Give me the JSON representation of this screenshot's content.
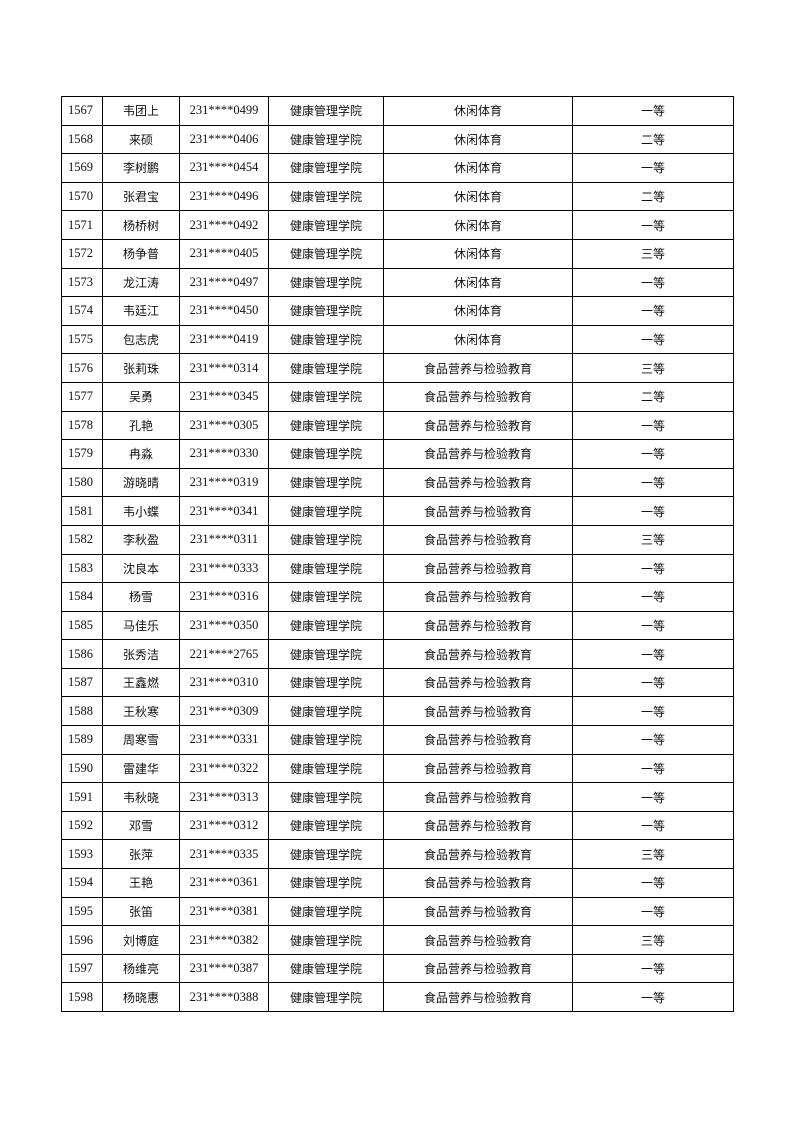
{
  "rows": [
    [
      "1567",
      "韦团上",
      "231****0499",
      "健康管理学院",
      "休闲体育",
      "一等"
    ],
    [
      "1568",
      "来硕",
      "231****0406",
      "健康管理学院",
      "休闲体育",
      "二等"
    ],
    [
      "1569",
      "李树鹏",
      "231****0454",
      "健康管理学院",
      "休闲体育",
      "一等"
    ],
    [
      "1570",
      "张君宝",
      "231****0496",
      "健康管理学院",
      "休闲体育",
      "二等"
    ],
    [
      "1571",
      "杨桥树",
      "231****0492",
      "健康管理学院",
      "休闲体育",
      "一等"
    ],
    [
      "1572",
      "杨争普",
      "231****0405",
      "健康管理学院",
      "休闲体育",
      "三等"
    ],
    [
      "1573",
      "龙江涛",
      "231****0497",
      "健康管理学院",
      "休闲体育",
      "一等"
    ],
    [
      "1574",
      "韦廷江",
      "231****0450",
      "健康管理学院",
      "休闲体育",
      "一等"
    ],
    [
      "1575",
      "包志虎",
      "231****0419",
      "健康管理学院",
      "休闲体育",
      "一等"
    ],
    [
      "1576",
      "张莉珠",
      "231****0314",
      "健康管理学院",
      "食品营养与检验教育",
      "三等"
    ],
    [
      "1577",
      "吴勇",
      "231****0345",
      "健康管理学院",
      "食品营养与检验教育",
      "二等"
    ],
    [
      "1578",
      "孔艳",
      "231****0305",
      "健康管理学院",
      "食品营养与检验教育",
      "一等"
    ],
    [
      "1579",
      "冉淼",
      "231****0330",
      "健康管理学院",
      "食品营养与检验教育",
      "一等"
    ],
    [
      "1580",
      "游晓晴",
      "231****0319",
      "健康管理学院",
      "食品营养与检验教育",
      "一等"
    ],
    [
      "1581",
      "韦小蝶",
      "231****0341",
      "健康管理学院",
      "食品营养与检验教育",
      "一等"
    ],
    [
      "1582",
      "李秋盈",
      "231****0311",
      "健康管理学院",
      "食品营养与检验教育",
      "三等"
    ],
    [
      "1583",
      "沈良本",
      "231****0333",
      "健康管理学院",
      "食品营养与检验教育",
      "一等"
    ],
    [
      "1584",
      "杨雪",
      "231****0316",
      "健康管理学院",
      "食品营养与检验教育",
      "一等"
    ],
    [
      "1585",
      "马佳乐",
      "231****0350",
      "健康管理学院",
      "食品营养与检验教育",
      "一等"
    ],
    [
      "1586",
      "张秀洁",
      "221****2765",
      "健康管理学院",
      "食品营养与检验教育",
      "一等"
    ],
    [
      "1587",
      "王鑫燃",
      "231****0310",
      "健康管理学院",
      "食品营养与检验教育",
      "一等"
    ],
    [
      "1588",
      "王秋寒",
      "231****0309",
      "健康管理学院",
      "食品营养与检验教育",
      "一等"
    ],
    [
      "1589",
      "周寒雪",
      "231****0331",
      "健康管理学院",
      "食品营养与检验教育",
      "一等"
    ],
    [
      "1590",
      "雷建华",
      "231****0322",
      "健康管理学院",
      "食品营养与检验教育",
      "一等"
    ],
    [
      "1591",
      "韦秋晓",
      "231****0313",
      "健康管理学院",
      "食品营养与检验教育",
      "一等"
    ],
    [
      "1592",
      "邓雪",
      "231****0312",
      "健康管理学院",
      "食品营养与检验教育",
      "一等"
    ],
    [
      "1593",
      "张萍",
      "231****0335",
      "健康管理学院",
      "食品营养与检验教育",
      "三等"
    ],
    [
      "1594",
      "王艳",
      "231****0361",
      "健康管理学院",
      "食品营养与检验教育",
      "一等"
    ],
    [
      "1595",
      "张笛",
      "231****0381",
      "健康管理学院",
      "食品营养与检验教育",
      "一等"
    ],
    [
      "1596",
      "刘博庭",
      "231****0382",
      "健康管理学院",
      "食品营养与检验教育",
      "三等"
    ],
    [
      "1597",
      "杨维亮",
      "231****0387",
      "健康管理学院",
      "食品营养与检验教育",
      "一等"
    ],
    [
      "1598",
      "杨晓惠",
      "231****0388",
      "健康管理学院",
      "食品营养与检验教育",
      "一等"
    ]
  ]
}
